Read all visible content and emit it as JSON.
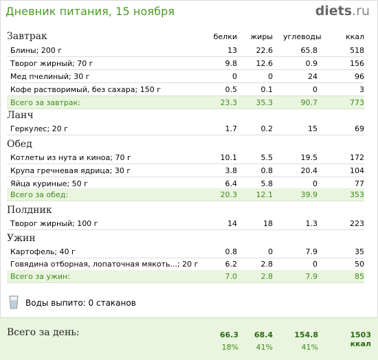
{
  "header": {
    "title": "Дневник питания, 15 ноября",
    "logo_main": "diets",
    "logo_suffix": ".ru"
  },
  "columns": {
    "protein": "белки",
    "fat": "жиры",
    "carbs": "углеводы",
    "kcal": "ккал"
  },
  "meals": [
    {
      "title": "Завтрак",
      "items": [
        {
          "name": "Блины; 200 г",
          "protein": "13",
          "fat": "22.6",
          "carbs": "65.8",
          "kcal": "518"
        },
        {
          "name": "Творог жирный; 70 г",
          "protein": "9.8",
          "fat": "12.6",
          "carbs": "0.9",
          "kcal": "156"
        },
        {
          "name": "Мед пчелиный; 30 г",
          "protein": "0",
          "fat": "0",
          "carbs": "24",
          "kcal": "96"
        },
        {
          "name": "Кофе растворимый, без сахара; 150 г",
          "protein": "0.5",
          "fat": "0.1",
          "carbs": "0",
          "kcal": "3"
        }
      ],
      "total": {
        "name": "Всего за завтрак:",
        "protein": "23.3",
        "fat": "35.3",
        "carbs": "90.7",
        "kcal": "773"
      }
    },
    {
      "title": "Ланч",
      "items": [
        {
          "name": "Геркулес; 20 г",
          "protein": "1.7",
          "fat": "0.2",
          "carbs": "15",
          "kcal": "69"
        }
      ]
    },
    {
      "title": "Обед",
      "items": [
        {
          "name": "Котлеты из нута и киноа; 70 г",
          "protein": "10.1",
          "fat": "5.5",
          "carbs": "19.5",
          "kcal": "172"
        },
        {
          "name": "Крупа гречневая ядрица; 30 г",
          "protein": "3.8",
          "fat": "0.8",
          "carbs": "20.4",
          "kcal": "104"
        },
        {
          "name": "Яйца куриные; 50 г",
          "protein": "6.4",
          "fat": "5.8",
          "carbs": "0",
          "kcal": "77"
        }
      ],
      "total": {
        "name": "Всего за обед:",
        "protein": "20.3",
        "fat": "12.1",
        "carbs": "39.9",
        "kcal": "353"
      }
    },
    {
      "title": "Полдник",
      "items": [
        {
          "name": "Творог жирный; 100 г",
          "protein": "14",
          "fat": "18",
          "carbs": "1.3",
          "kcal": "223"
        }
      ]
    },
    {
      "title": "Ужин",
      "items": [
        {
          "name": "Картофель; 40 г",
          "protein": "0.8",
          "fat": "0",
          "carbs": "7.9",
          "kcal": "35"
        },
        {
          "name": "Говядина отборная, лопаточная мякоть...; 20 г",
          "protein": "6.2",
          "fat": "2.8",
          "carbs": "0",
          "kcal": "50"
        }
      ],
      "total": {
        "name": "Всего за ужин:",
        "protein": "7.0",
        "fat": "2.8",
        "carbs": "7.9",
        "kcal": "85"
      }
    }
  ],
  "water": {
    "icon": "glass-icon",
    "text": "Воды выпито: 0 стаканов"
  },
  "day_total": {
    "label": "Всего за день:",
    "protein": "66.3",
    "fat": "68.4",
    "carbs": "154.8",
    "kcal": "1503 ккал",
    "protein_pct": "18%",
    "fat_pct": "41%",
    "carbs_pct": "41%"
  },
  "colors": {
    "title": "#4a9a22",
    "total_row_bg": "#eaf5e0",
    "total_text": "#3d8a1a"
  }
}
